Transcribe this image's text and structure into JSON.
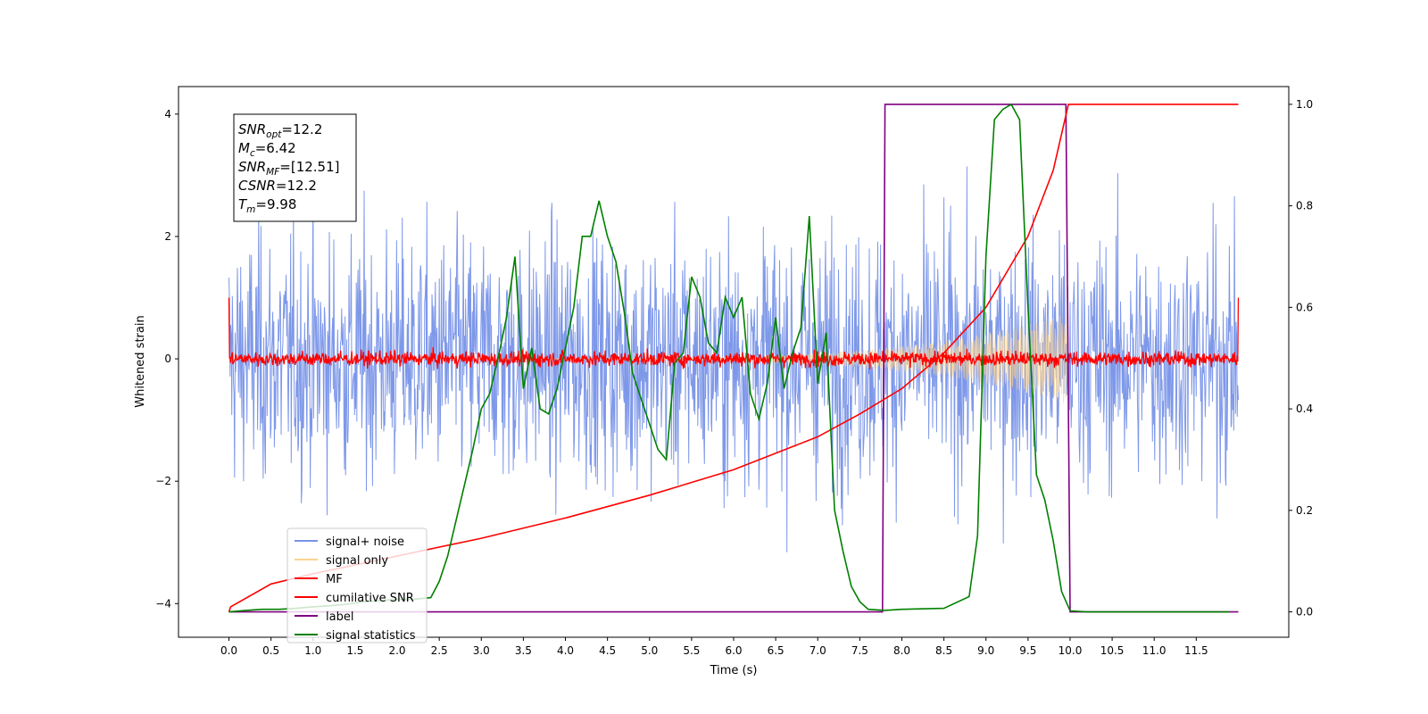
{
  "chart_data": {
    "type": "line",
    "xlabel": "Time (s)",
    "ylabel": "Whitened strain",
    "xlim": [
      -0.6,
      12.6
    ],
    "ylim": [
      -4.55,
      4.45
    ],
    "y2lim": [
      -0.05,
      1.035
    ],
    "x_ticks": [
      "0.0",
      "0.5",
      "1.0",
      "1.5",
      "2.0",
      "2.5",
      "3.0",
      "3.5",
      "4.0",
      "4.5",
      "5.0",
      "5.5",
      "6.0",
      "6.5",
      "7.0",
      "7.5",
      "8.0",
      "8.5",
      "9.0",
      "9.5",
      "10.0",
      "10.5",
      "11.0",
      "11.5"
    ],
    "y_ticks": [
      "-4",
      "-2",
      "0",
      "2",
      "4"
    ],
    "y2_ticks": [
      "0.0",
      "0.2",
      "0.4",
      "0.6",
      "0.8",
      "1.0"
    ],
    "annotation": [
      {
        "base": "SNR",
        "sub": "opt",
        "value": "=12.2"
      },
      {
        "base": "M",
        "sub": "c",
        "value": "=6.42"
      },
      {
        "base": "SNR",
        "sub": "MF",
        "value": "=[12.51]"
      },
      {
        "base": "CSNR",
        "sub": "",
        "value": "=12.2"
      },
      {
        "base": "T",
        "sub": "m",
        "value": "=9.98"
      }
    ],
    "legend_position": "lower-left",
    "series": [
      {
        "name": "signal+ noise",
        "color": "#7792e8",
        "axis": "left",
        "kind": "noise",
        "t_start": 0.0,
        "t_end": 12.0,
        "sigma": 1.0,
        "clip": 4.05
      },
      {
        "name": "signal only",
        "color": "#fcd38d",
        "axis": "left",
        "kind": "chirp",
        "t_start": 0.0,
        "t_end": 9.98,
        "amplitude_end": 0.75
      },
      {
        "name": "MF",
        "color": "#ff0000",
        "axis": "left",
        "kind": "noise",
        "t_start": 0.0,
        "t_end": 12.0,
        "sigma": 0.06,
        "edge_peak": 1.0
      },
      {
        "name": "cumilative SNR",
        "color": "#ff0000",
        "axis": "right",
        "x": [
          0.0,
          0.02,
          0.5,
          1.0,
          2.0,
          3.0,
          4.0,
          5.0,
          6.0,
          7.0,
          7.5,
          8.0,
          8.5,
          9.0,
          9.5,
          9.8,
          9.98,
          10.0,
          12.0
        ],
        "y": [
          0.0,
          0.01,
          0.055,
          0.075,
          0.11,
          0.145,
          0.185,
          0.23,
          0.28,
          0.345,
          0.39,
          0.44,
          0.51,
          0.6,
          0.74,
          0.87,
          1.0,
          1.0,
          1.0
        ]
      },
      {
        "name": "label",
        "color": "#800080",
        "axis": "right",
        "x": [
          0.0,
          7.77,
          7.8,
          9.95,
          10.0,
          12.0
        ],
        "y": [
          0.0,
          0.0,
          1.0,
          1.0,
          0.0,
          0.0
        ]
      },
      {
        "name": "signal statistics",
        "color": "#008000",
        "axis": "right",
        "x": [
          0.0,
          0.2,
          0.4,
          0.6,
          0.8,
          1.0,
          1.2,
          1.4,
          1.6,
          1.8,
          2.0,
          2.2,
          2.4,
          2.5,
          2.6,
          2.7,
          2.8,
          2.9,
          3.0,
          3.1,
          3.2,
          3.3,
          3.4,
          3.5,
          3.6,
          3.7,
          3.8,
          3.9,
          4.0,
          4.1,
          4.2,
          4.3,
          4.4,
          4.5,
          4.6,
          4.7,
          4.8,
          4.9,
          5.0,
          5.1,
          5.2,
          5.3,
          5.4,
          5.5,
          5.6,
          5.7,
          5.8,
          5.9,
          6.0,
          6.1,
          6.2,
          6.3,
          6.4,
          6.5,
          6.6,
          6.7,
          6.8,
          6.9,
          7.0,
          7.1,
          7.2,
          7.3,
          7.4,
          7.5,
          7.6,
          7.8,
          8.0,
          8.5,
          8.8,
          8.9,
          9.0,
          9.1,
          9.2,
          9.3,
          9.4,
          9.5,
          9.6,
          9.7,
          9.8,
          9.9,
          10.0,
          10.2,
          11.0,
          11.9
        ],
        "y": [
          0.0,
          0.003,
          0.005,
          0.005,
          0.007,
          0.01,
          0.012,
          0.015,
          0.02,
          0.022,
          0.025,
          0.025,
          0.028,
          0.06,
          0.11,
          0.18,
          0.25,
          0.32,
          0.4,
          0.43,
          0.5,
          0.58,
          0.7,
          0.44,
          0.52,
          0.4,
          0.39,
          0.44,
          0.52,
          0.6,
          0.74,
          0.74,
          0.81,
          0.74,
          0.69,
          0.59,
          0.47,
          0.42,
          0.37,
          0.32,
          0.3,
          0.49,
          0.51,
          0.66,
          0.62,
          0.53,
          0.51,
          0.62,
          0.58,
          0.62,
          0.43,
          0.38,
          0.45,
          0.58,
          0.44,
          0.51,
          0.56,
          0.78,
          0.45,
          0.55,
          0.2,
          0.12,
          0.05,
          0.02,
          0.005,
          0.003,
          0.005,
          0.007,
          0.03,
          0.15,
          0.7,
          0.97,
          0.99,
          1.0,
          0.97,
          0.6,
          0.27,
          0.22,
          0.14,
          0.04,
          0.002,
          0.0,
          0.0,
          0.0
        ]
      }
    ]
  }
}
